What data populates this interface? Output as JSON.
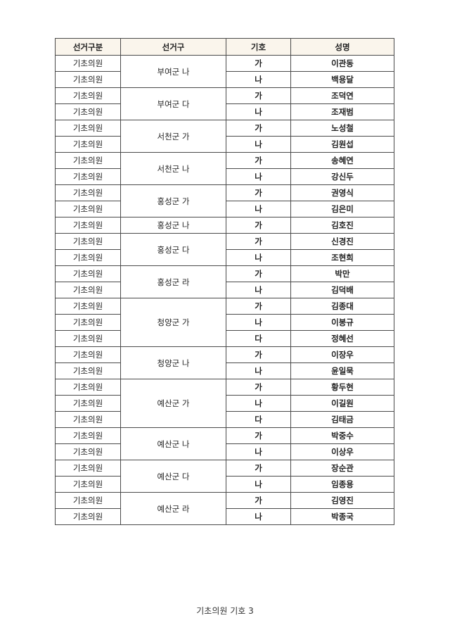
{
  "headers": [
    "선거구분",
    "선거구",
    "기호",
    "성명"
  ],
  "districts": [
    {
      "district": "부여군 나",
      "candidates": [
        {
          "category": "기초의원",
          "symbol": "가",
          "name": "이관동"
        },
        {
          "category": "기초의원",
          "symbol": "나",
          "name": "백용달"
        }
      ]
    },
    {
      "district": "부여군 다",
      "candidates": [
        {
          "category": "기초의원",
          "symbol": "가",
          "name": "조덕연"
        },
        {
          "category": "기초의원",
          "symbol": "나",
          "name": "조재범"
        }
      ]
    },
    {
      "district": "서천군 가",
      "candidates": [
        {
          "category": "기초의원",
          "symbol": "가",
          "name": "노성철"
        },
        {
          "category": "기초의원",
          "symbol": "나",
          "name": "김원섭"
        }
      ]
    },
    {
      "district": "서천군 나",
      "candidates": [
        {
          "category": "기초의원",
          "symbol": "가",
          "name": "송혜연"
        },
        {
          "category": "기초의원",
          "symbol": "나",
          "name": "강신두"
        }
      ]
    },
    {
      "district": "홍성군 가",
      "candidates": [
        {
          "category": "기초의원",
          "symbol": "가",
          "name": "권영식"
        },
        {
          "category": "기초의원",
          "symbol": "나",
          "name": "김은미"
        }
      ]
    },
    {
      "district": "홍성군 나",
      "candidates": [
        {
          "category": "기초의원",
          "symbol": "가",
          "name": "김호진"
        }
      ]
    },
    {
      "district": "홍성군 다",
      "candidates": [
        {
          "category": "기초의원",
          "symbol": "가",
          "name": "신경진"
        },
        {
          "category": "기초의원",
          "symbol": "나",
          "name": "조현희"
        }
      ]
    },
    {
      "district": "홍성군 라",
      "candidates": [
        {
          "category": "기초의원",
          "symbol": "가",
          "name": "박만"
        },
        {
          "category": "기초의원",
          "symbol": "나",
          "name": "김덕배"
        }
      ]
    },
    {
      "district": "청양군 가",
      "candidates": [
        {
          "category": "기초의원",
          "symbol": "가",
          "name": "김종대"
        },
        {
          "category": "기초의원",
          "symbol": "나",
          "name": "이봉규"
        },
        {
          "category": "기초의원",
          "symbol": "다",
          "name": "정혜선"
        }
      ]
    },
    {
      "district": "청양군 나",
      "candidates": [
        {
          "category": "기초의원",
          "symbol": "가",
          "name": "이장우"
        },
        {
          "category": "기초의원",
          "symbol": "나",
          "name": "윤일묵"
        }
      ]
    },
    {
      "district": "예산군 가",
      "candidates": [
        {
          "category": "기초의원",
          "symbol": "가",
          "name": "황두현"
        },
        {
          "category": "기초의원",
          "symbol": "나",
          "name": "이길원"
        },
        {
          "category": "기초의원",
          "symbol": "다",
          "name": "김태금"
        }
      ]
    },
    {
      "district": "예산군 나",
      "candidates": [
        {
          "category": "기초의원",
          "symbol": "가",
          "name": "박중수"
        },
        {
          "category": "기초의원",
          "symbol": "나",
          "name": "이상우"
        }
      ]
    },
    {
      "district": "예산군 다",
      "candidates": [
        {
          "category": "기초의원",
          "symbol": "가",
          "name": "장순관"
        },
        {
          "category": "기초의원",
          "symbol": "나",
          "name": "임종용"
        }
      ]
    },
    {
      "district": "예산군 라",
      "candidates": [
        {
          "category": "기초의원",
          "symbol": "가",
          "name": "김영진"
        },
        {
          "category": "기초의원",
          "symbol": "나",
          "name": "박종국"
        }
      ]
    }
  ],
  "footer": "기초의원 기호 3"
}
